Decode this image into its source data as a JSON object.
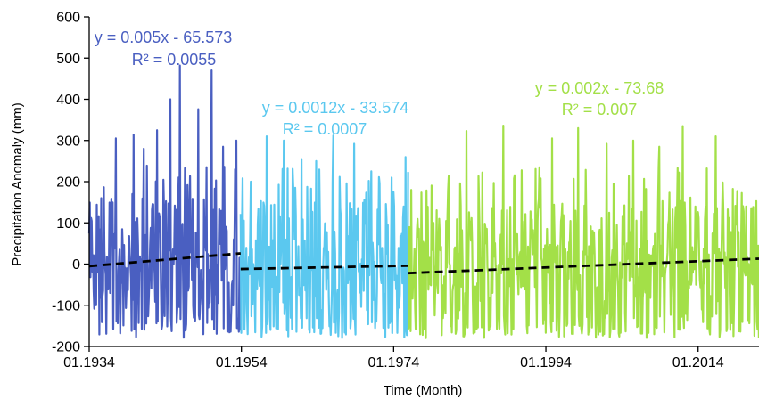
{
  "chart_data": {
    "type": "line",
    "title": "",
    "xlabel": "Time (Month)",
    "ylabel": "Precipitation Anomaly (mm)",
    "ylim": [
      -200,
      600
    ],
    "yticks": [
      -200,
      -100,
      0,
      100,
      200,
      300,
      400,
      500,
      600
    ],
    "xlim": [
      1934.0,
      2022.0
    ],
    "xticks": [
      {
        "value": 1934.0,
        "label": "01.1934"
      },
      {
        "value": 1954.0,
        "label": "01.1954"
      },
      {
        "value": 1974.0,
        "label": "01.1974"
      },
      {
        "value": 1994.0,
        "label": "01.1994"
      },
      {
        "value": 2014.0,
        "label": "01.2014"
      }
    ],
    "grid": false,
    "series": [
      {
        "color": "#4a5fc1",
        "x_range": [
          1934.0,
          1953.9
        ],
        "peaks": [
          {
            "x": 1945.9,
            "y": 482
          },
          {
            "x": 1950.1,
            "y": 470
          },
          {
            "x": 1944.7,
            "y": 400
          },
          {
            "x": 1948.3,
            "y": 376
          },
          {
            "x": 1942.9,
            "y": 325
          },
          {
            "x": 1939.8,
            "y": 314
          },
          {
            "x": 1937.5,
            "y": 305
          },
          {
            "x": 1953.3,
            "y": 300
          },
          {
            "x": 1941.2,
            "y": 280
          },
          {
            "x": 1951.6,
            "y": 285
          },
          {
            "x": 1935.6,
            "y": 160
          }
        ],
        "trendline": {
          "slope": 0.005,
          "intercept": -65.573,
          "r2": 0.0055,
          "y_start": -5,
          "y_end": 26
        },
        "equation": "y = 0.005x - 65.573",
        "r2_label": "R² = 0.0055"
      },
      {
        "color": "#5bc8ef",
        "x_range": [
          1953.9,
          1975.9
        ],
        "peaks": [
          {
            "x": 1957.3,
            "y": 310
          },
          {
            "x": 1966.1,
            "y": 312
          },
          {
            "x": 1959.6,
            "y": 300
          },
          {
            "x": 1968.8,
            "y": 292
          },
          {
            "x": 1961.9,
            "y": 255
          },
          {
            "x": 1963.8,
            "y": 250
          },
          {
            "x": 1971.1,
            "y": 225
          },
          {
            "x": 1975.6,
            "y": 260
          },
          {
            "x": 1955.2,
            "y": 200
          }
        ],
        "trendline": {
          "slope": 0.0012,
          "intercept": -33.574,
          "r2": 0.0007,
          "y_start": -12,
          "y_end": -4
        },
        "equation": "y = 0.0012x - 33.574",
        "r2_label": "R² = 0.0007"
      },
      {
        "color": "#a3e048",
        "x_range": [
          1975.9,
          2022.0
        ],
        "peaks": [
          {
            "x": 1988.4,
            "y": 336
          },
          {
            "x": 2012.0,
            "y": 335
          },
          {
            "x": 1998.2,
            "y": 330
          },
          {
            "x": 1983.6,
            "y": 323
          },
          {
            "x": 2016.3,
            "y": 310
          },
          {
            "x": 1994.8,
            "y": 305
          },
          {
            "x": 2005.5,
            "y": 300
          },
          {
            "x": 2002.0,
            "y": 292
          },
          {
            "x": 2008.9,
            "y": 285
          }
        ],
        "trendline": {
          "slope": 0.002,
          "intercept": -73.68,
          "r2": 0.007,
          "y_start": -22,
          "y_end": 13
        },
        "equation": "y = 0.002x - 73.68",
        "r2_label": "R² = 0.007"
      }
    ]
  },
  "colors": {
    "trendline": "#000000",
    "axis": "#000000",
    "background": "#ffffff"
  }
}
